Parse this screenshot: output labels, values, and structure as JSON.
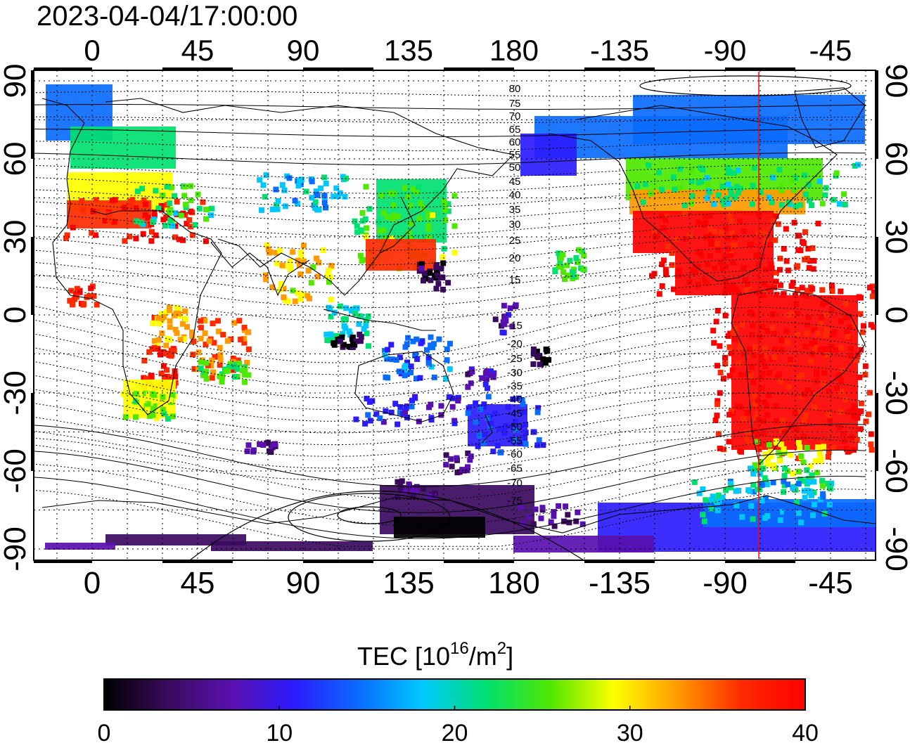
{
  "timestamp": "2023-04-04/17:00:00",
  "lon_ticks": [
    "0",
    "45",
    "90",
    "135",
    "180",
    "-135",
    "-90",
    "-45"
  ],
  "lat_ticks": [
    "90",
    "60",
    "30",
    "0",
    "-30",
    "-60",
    "-90"
  ],
  "mag_lat_labels_north": [
    "80",
    "75",
    "70",
    "65",
    "60",
    "55",
    "50",
    "45",
    "40",
    "35",
    "30",
    "25",
    "20",
    "15"
  ],
  "mag_lat_labels_south": [
    "-15",
    "-20",
    "-25",
    "-30",
    "-35",
    "-40",
    "-45",
    "-50",
    "-55",
    "-60",
    "-65",
    "-70",
    "-75"
  ],
  "colorbar": {
    "title_main": "TEC  [10",
    "title_sup1": "16",
    "title_mid": "/m",
    "title_sup2": "2",
    "title_end": "]",
    "min": 0,
    "max": 40,
    "tick_labels": [
      "0",
      "10",
      "20",
      "30",
      "40"
    ],
    "colors": [
      "#000000",
      "#3a0a5e",
      "#5a10b0",
      "#2a1cff",
      "#0a6cff",
      "#00c8ff",
      "#00e070",
      "#4ee800",
      "#ffff00",
      "#ff9a00",
      "#ff2a00",
      "#ff0000"
    ]
  },
  "marker_color": "#ff0000"
}
